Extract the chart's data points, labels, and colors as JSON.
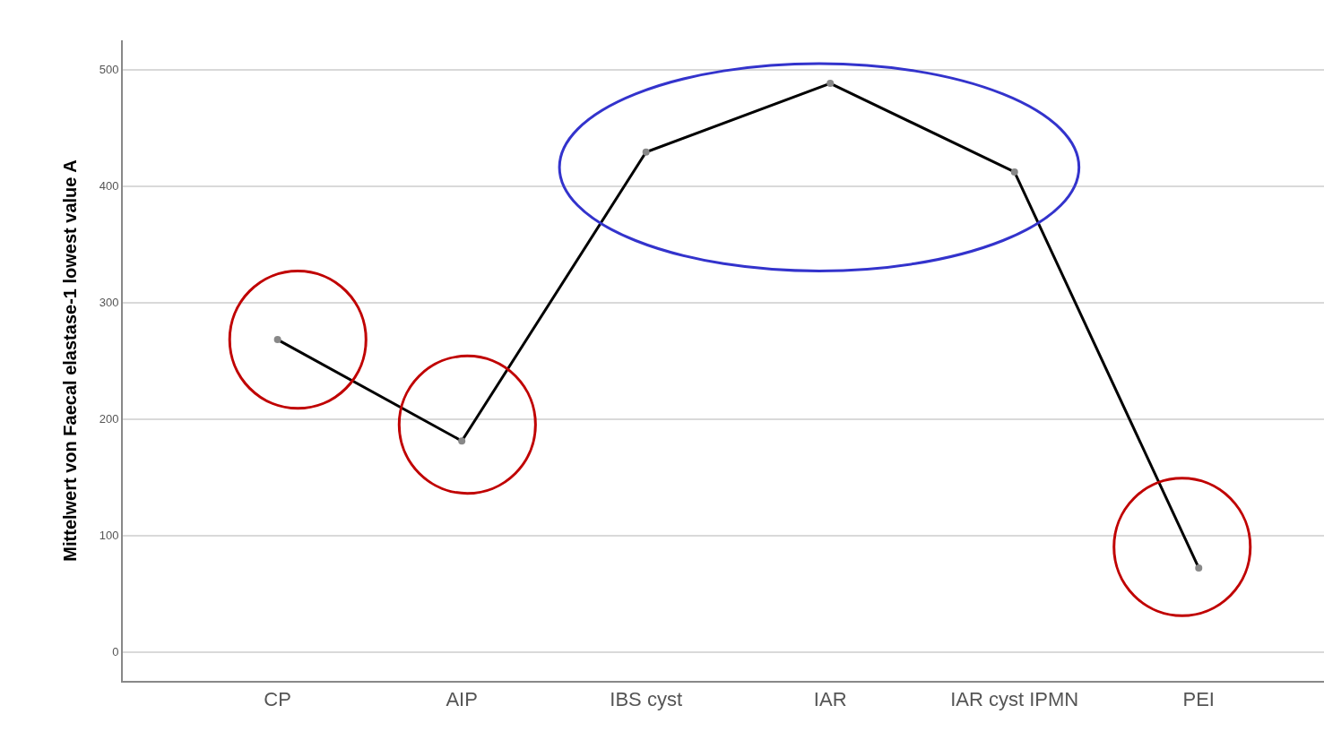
{
  "chart_data": {
    "type": "line",
    "ylabel": "Mittelwert von Faecal elastase-1 lowest value A",
    "categories": [
      "CP",
      "AIP",
      "IBS cyst",
      "IAR",
      "IAR cyst IPMN",
      "PEI"
    ],
    "series": [
      {
        "color": "#000000",
        "values": [
          268,
          181,
          429,
          488,
          412,
          72
        ]
      }
    ],
    "ylim": [
      -25,
      525
    ],
    "yticks": [
      0,
      100,
      200,
      300,
      400,
      500
    ],
    "grid": "y",
    "marker": "circle",
    "line_style": "solid"
  }
}
